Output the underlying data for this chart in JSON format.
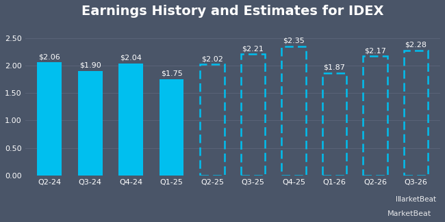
{
  "title": "Earnings History and Estimates for IDEX",
  "categories": [
    "Q2-24",
    "Q3-24",
    "Q4-24",
    "Q1-25",
    "Q2-25",
    "Q3-25",
    "Q4-25",
    "Q1-26",
    "Q2-26",
    "Q3-26"
  ],
  "values": [
    2.06,
    1.9,
    2.04,
    1.75,
    2.02,
    2.21,
    2.35,
    1.87,
    2.17,
    2.28
  ],
  "labels": [
    "$2.06",
    "$1.90",
    "$2.04",
    "$1.75",
    "$2.02",
    "$2.21",
    "$2.35",
    "$1.87",
    "$2.17",
    "$2.28"
  ],
  "n_solid": 4,
  "bar_color_solid": "#00bfef",
  "bar_color_dashed": "#00bfef",
  "background_color": "#4a5568",
  "grid_color": "#5a6478",
  "text_color": "#ffffff",
  "title_fontsize": 14,
  "label_fontsize": 8,
  "tick_fontsize": 8,
  "ylim": [
    0,
    2.75
  ],
  "yticks": [
    0.0,
    0.5,
    1.0,
    1.5,
    2.0,
    2.5
  ],
  "ytick_labels": [
    "0.00",
    "0.50",
    "1.00",
    "1.50",
    "2.00",
    "2.50"
  ],
  "bar_width": 0.6
}
